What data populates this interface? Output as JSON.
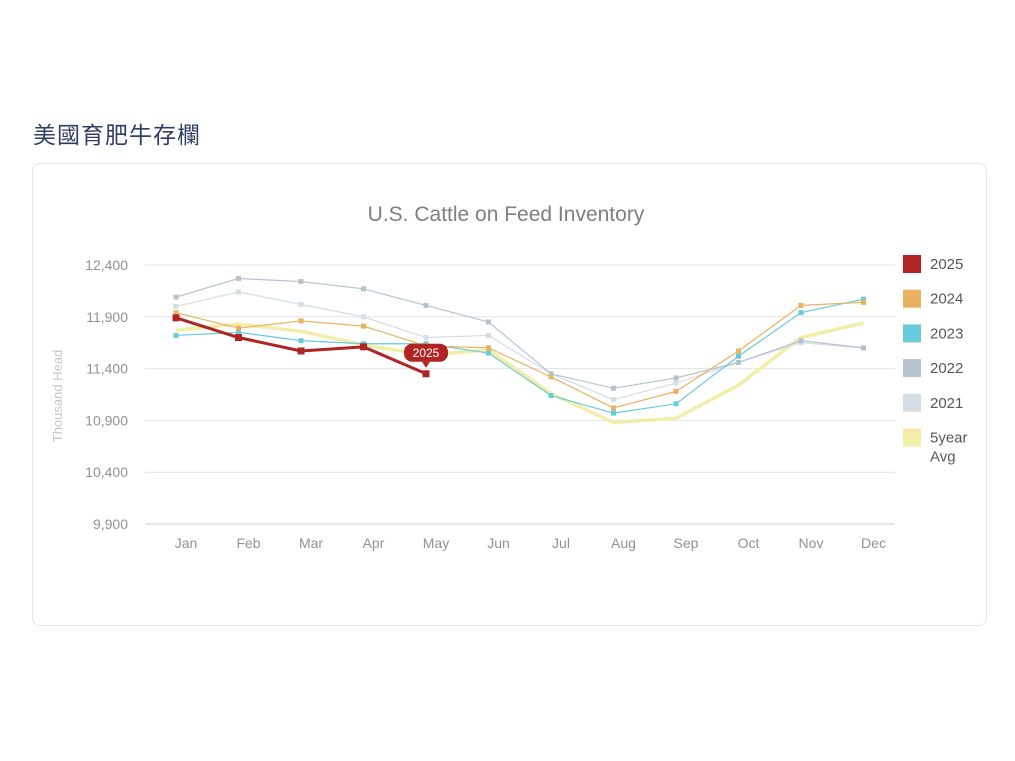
{
  "page": {
    "title": "美國育肥牛存欄"
  },
  "chart_data": {
    "type": "line",
    "title": "U.S. Cattle on Feed Inventory",
    "xlabel": "",
    "ylabel": "Thousand Head",
    "categories": [
      "Jan",
      "Feb",
      "Mar",
      "Apr",
      "May",
      "Jun",
      "Jul",
      "Aug",
      "Sep",
      "Oct",
      "Nov",
      "Dec"
    ],
    "yticks": [
      "12,400",
      "11,900",
      "11,400",
      "10,900",
      "10,400",
      "9,900"
    ],
    "ytick_values": [
      12400,
      11900,
      11400,
      10900,
      10400,
      9900
    ],
    "ylim": [
      9900,
      12400
    ],
    "grid": true,
    "legend_position": "right",
    "tooltip": {
      "label": "2025",
      "series": "2025",
      "index": 4
    },
    "series": [
      {
        "name": "5year Avg",
        "color": "#f2eea8",
        "width": 3.5,
        "markers": false,
        "values": [
          11770,
          11830,
          11760,
          11630,
          11530,
          11580,
          11160,
          10880,
          10920,
          11240,
          11700,
          11840
        ]
      },
      {
        "name": "2021",
        "color": "#d3dde3",
        "width": 1.2,
        "markers": true,
        "values": [
          12000,
          12140,
          12020,
          11900,
          11700,
          11720,
          11350,
          11100,
          11260,
          11460,
          11650,
          11600
        ]
      },
      {
        "name": "2022",
        "color": "#b6c3cd",
        "width": 1.2,
        "markers": true,
        "values": [
          12090,
          12270,
          12240,
          12170,
          12010,
          11850,
          11350,
          11210,
          11310,
          11460,
          11670,
          11600
        ]
      },
      {
        "name": "2023",
        "color": "#67cbdb",
        "width": 1.2,
        "markers": true,
        "values": [
          11720,
          11750,
          11670,
          11640,
          11640,
          11550,
          11140,
          10970,
          11060,
          11520,
          11940,
          12070
        ]
      },
      {
        "name": "2024",
        "color": "#e9b25f",
        "width": 1.2,
        "markers": true,
        "values": [
          11940,
          11790,
          11860,
          11810,
          11620,
          11600,
          11320,
          11020,
          11180,
          11570,
          12010,
          12040
        ]
      },
      {
        "name": "2025",
        "color": "#b02424",
        "width": 3,
        "markers": true,
        "values": [
          11890,
          11700,
          11570,
          11610,
          11350,
          null,
          null,
          null,
          null,
          null,
          null,
          null
        ]
      }
    ],
    "legend": [
      {
        "name": "2025",
        "color": "#b02424"
      },
      {
        "name": "2024",
        "color": "#e9b25f"
      },
      {
        "name": "2023",
        "color": "#67cbdb"
      },
      {
        "name": "2022",
        "color": "#b6c3cd"
      },
      {
        "name": "2021",
        "color": "#d3dde3"
      },
      {
        "name": "5year Avg",
        "color": "#f2eea8"
      }
    ]
  }
}
